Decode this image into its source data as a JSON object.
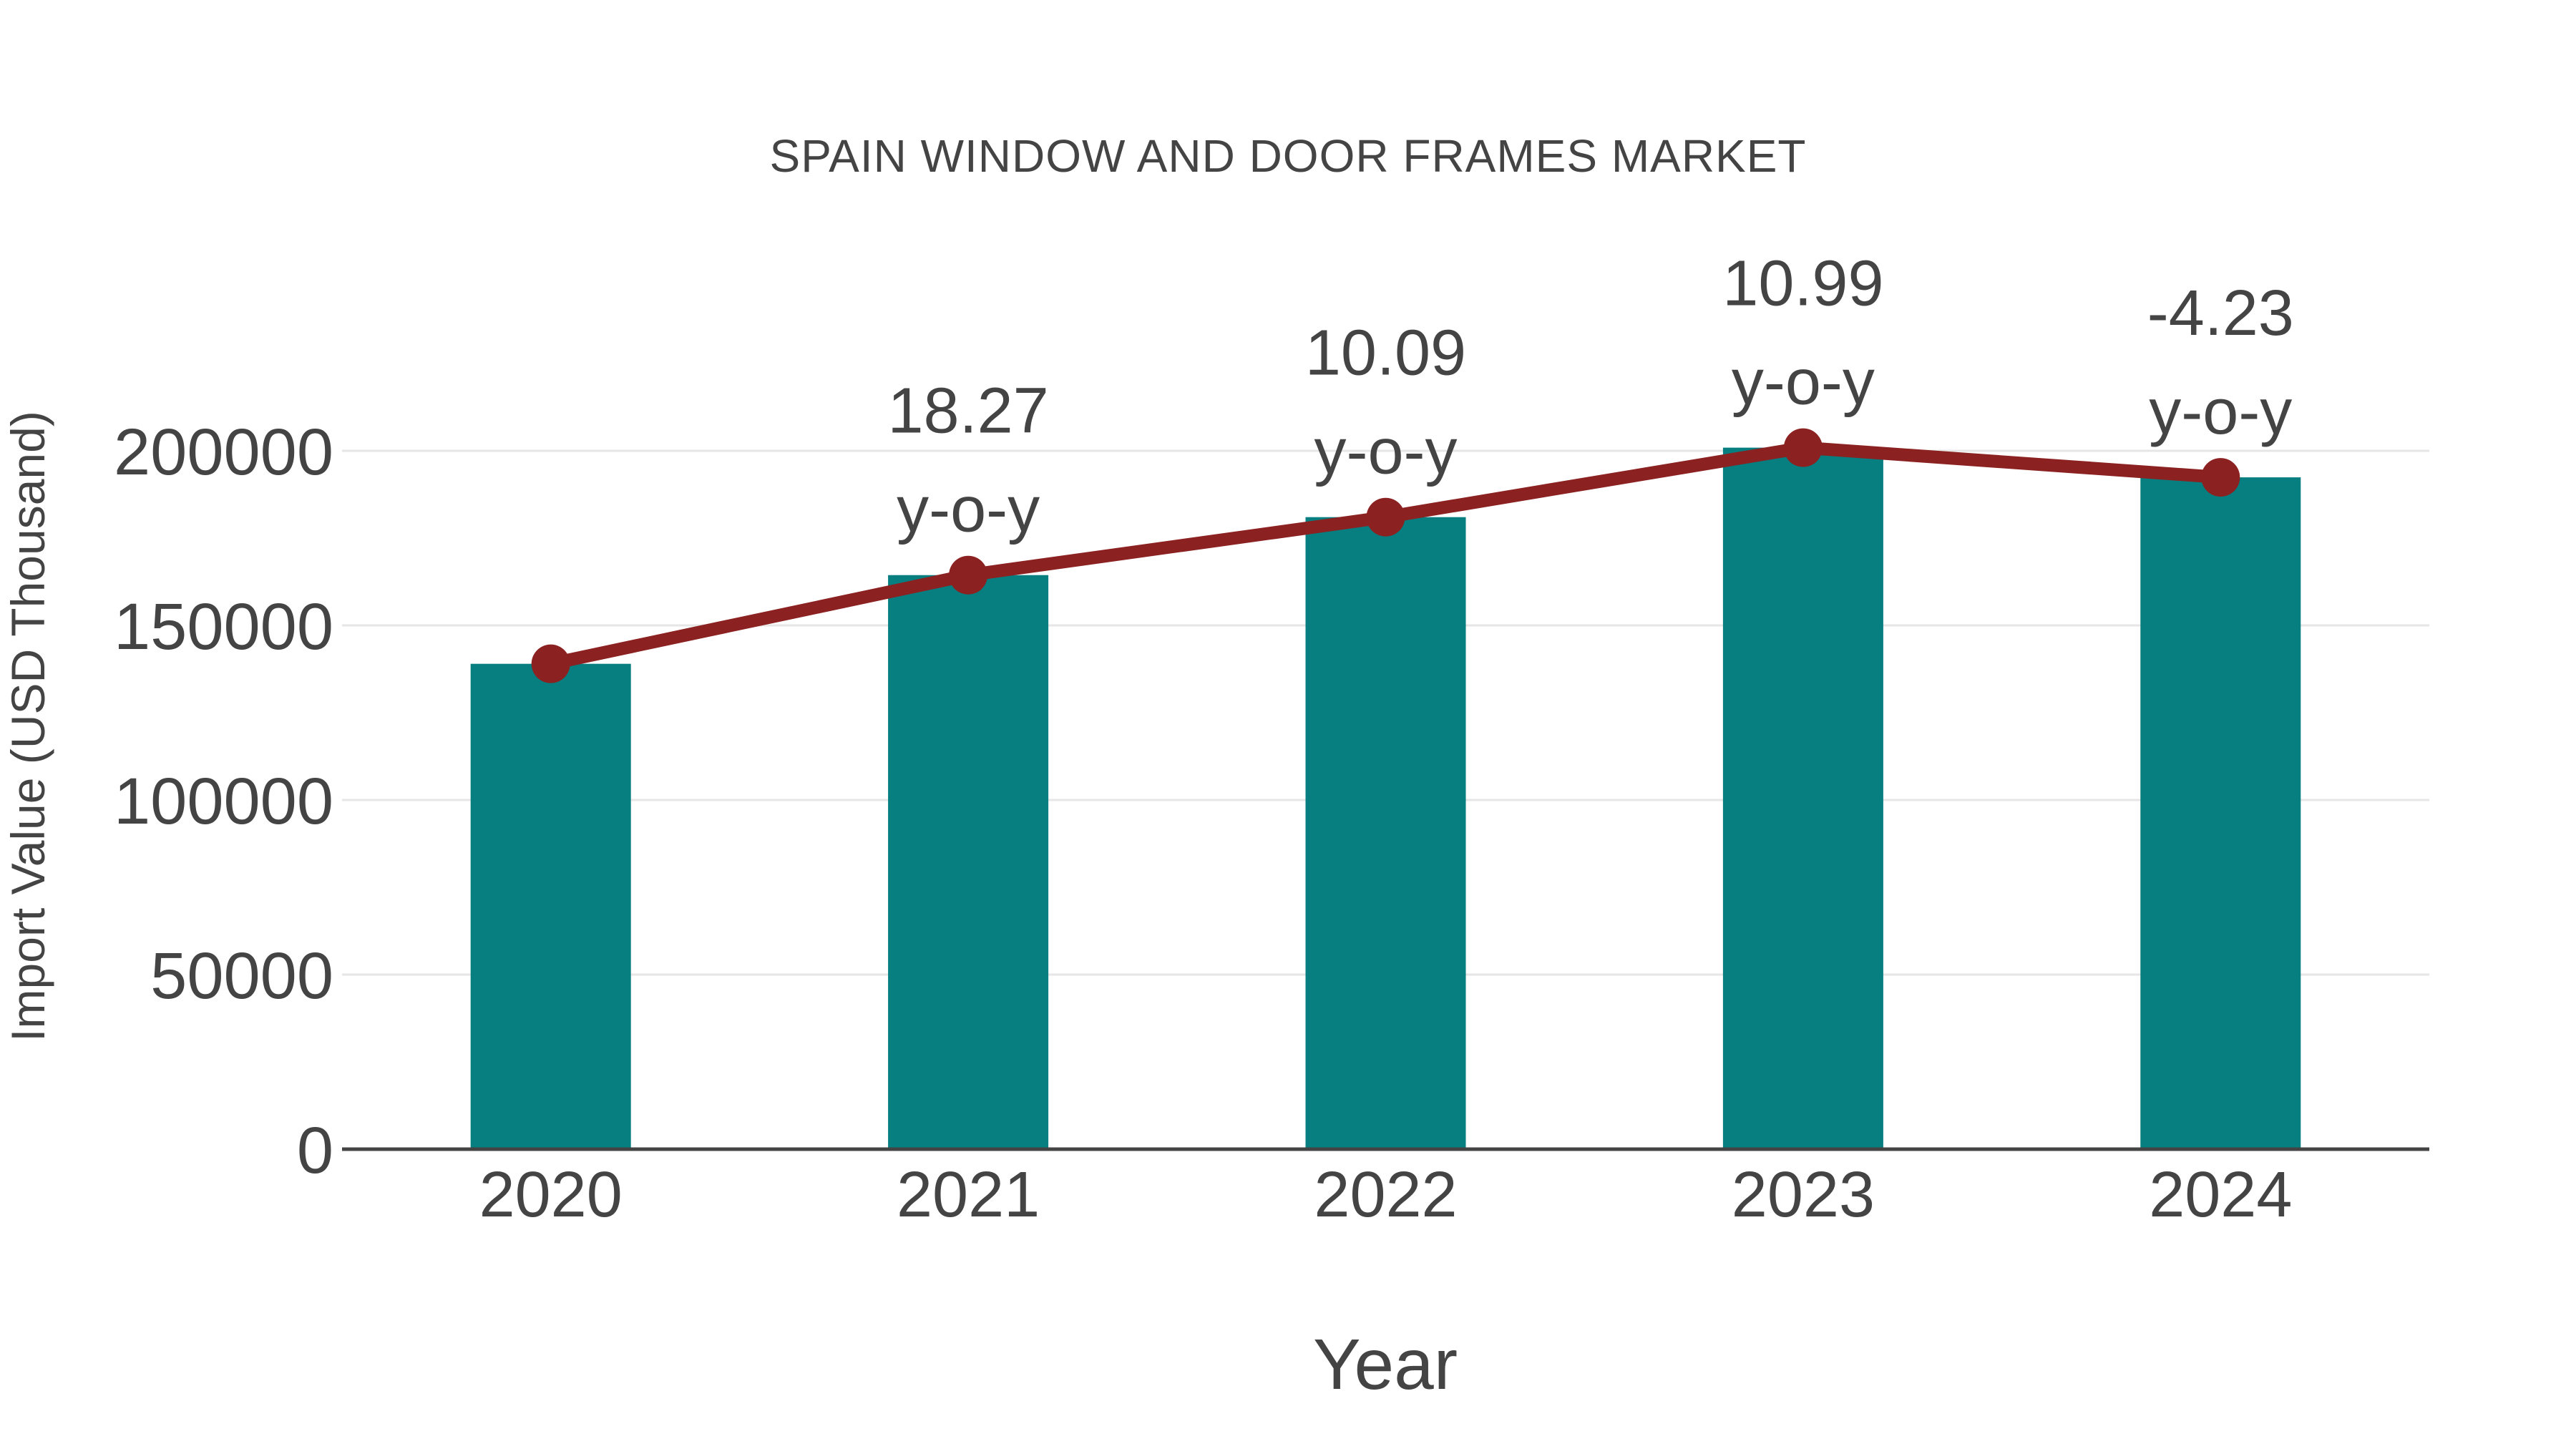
{
  "page": {
    "background": "#ffffff"
  },
  "chart_data": {
    "type": "bar",
    "title": "SPAIN WINDOW AND DOOR FRAMES MARKET",
    "xlabel": "Year",
    "ylabel": "Import Value (USD Thousand)",
    "categories": [
      "2020",
      "2021",
      "2022",
      "2023",
      "2024"
    ],
    "series": [
      {
        "name": "Import Value (USD Thousand)",
        "type": "bar",
        "color": "#077e80",
        "values": [
          139000,
          164400,
          181000,
          200900,
          192400
        ]
      },
      {
        "name": "y-o-y growth",
        "type": "line",
        "color": "#8b2120",
        "values": [
          139000,
          164400,
          181000,
          200900,
          192400
        ],
        "point_labels": [
          "",
          "18.27",
          "10.09",
          "10.99",
          "-4.23"
        ],
        "point_label_suffix": "y-o-y"
      }
    ],
    "yticks": [
      0,
      50000,
      100000,
      150000,
      200000
    ],
    "ytick_labels": [
      "0",
      "50000",
      "100000",
      "150000",
      "200000"
    ],
    "ylim": [
      0,
      200000
    ],
    "grid": true,
    "legend": false,
    "colors": {
      "text": "#444444",
      "grid": "#e6e6e6",
      "axis_line": "#444444",
      "bar": "#077e80",
      "line": "#8b2120"
    }
  }
}
